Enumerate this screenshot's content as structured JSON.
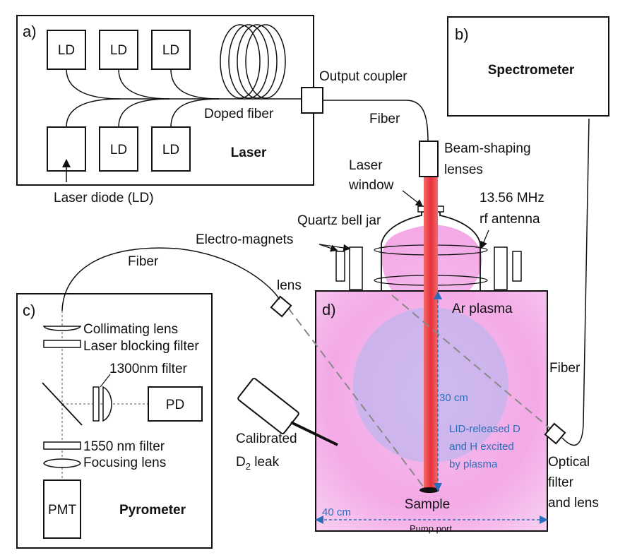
{
  "panels": {
    "a": "a)",
    "b": "b)",
    "c": "c)",
    "d": "d)"
  },
  "laser": {
    "title": "Laser",
    "ld": "LD",
    "doped_fiber": "Doped fiber",
    "laser_diode": "Laser diode (LD)",
    "output_coupler": "Output coupler"
  },
  "spectrometer": {
    "title": "Spectrometer"
  },
  "fiber_labels": {
    "top": "Fiber",
    "left": "Fiber",
    "right": "Fiber"
  },
  "beam": {
    "shaping_1": "Beam-shaping",
    "shaping_2": "lenses",
    "window_1": "Laser",
    "window_2": "window"
  },
  "chamber": {
    "rf_1": "13.56 MHz",
    "rf_2": "rf antenna",
    "bell_jar": "Quartz bell jar",
    "magnets": "Electro-magnets",
    "lens": "lens",
    "ar_plasma": "Ar plasma",
    "height": "30 cm",
    "width": "40 cm",
    "release_1": "LID-released D",
    "release_2": "and H excited",
    "release_3": "by plasma",
    "sample": "Sample",
    "pump_port": "Pump port",
    "leak_1": "Calibrated",
    "leak_2": "D",
    "leak_sub": "2",
    "leak_3": " leak",
    "optical_1": "Optical",
    "optical_2": "filter",
    "optical_3": "and lens"
  },
  "pyrometer": {
    "title": "Pyrometer",
    "collimating": "Collimating lens",
    "blocking": "Laser blocking filter",
    "filter_1300": "1300nm filter",
    "pd": "PD",
    "filter_1550": "1550 nm filter",
    "focusing": "Focusing lens",
    "pmt": "PMT"
  },
  "colors": {
    "plasma": "#f2a6e4",
    "beam": "#e8404a",
    "spot": "#b9b6ee",
    "dim": "#2a6ebb"
  }
}
